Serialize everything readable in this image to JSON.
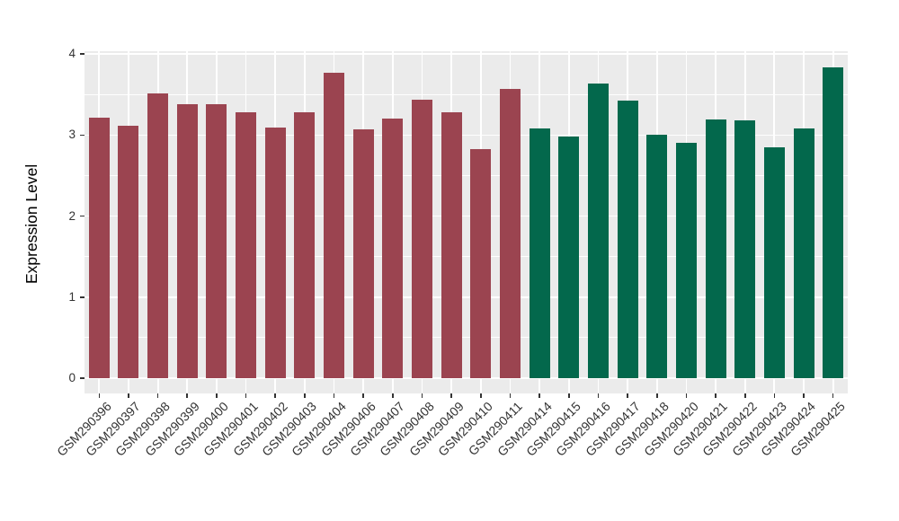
{
  "chart_data": {
    "type": "bar",
    "title": "",
    "xlabel": "",
    "ylabel": "Expression Level",
    "ylim": [
      0,
      4
    ],
    "yticks": [
      0,
      1,
      2,
      3,
      4
    ],
    "grid": "on",
    "legend_position": "none",
    "panel_background": "#EBEBEB",
    "gridline_color": "#FFFFFF",
    "tick_color": "#333333",
    "categories": [
      "GSM290396",
      "GSM290397",
      "GSM290398",
      "GSM290399",
      "GSM290400",
      "GSM290401",
      "GSM290402",
      "GSM290403",
      "GSM290404",
      "GSM290406",
      "GSM290407",
      "GSM290408",
      "GSM290409",
      "GSM290410",
      "GSM290411",
      "GSM290414",
      "GSM290415",
      "GSM290416",
      "GSM290417",
      "GSM290418",
      "GSM290420",
      "GSM290421",
      "GSM290422",
      "GSM290423",
      "GSM290424",
      "GSM290425"
    ],
    "values": [
      3.21,
      3.12,
      3.51,
      3.38,
      3.38,
      3.28,
      3.09,
      3.28,
      3.77,
      3.07,
      3.2,
      3.44,
      3.28,
      2.83,
      3.57,
      3.08,
      2.98,
      3.64,
      3.43,
      3.0,
      2.9,
      3.19,
      3.18,
      2.85,
      3.08,
      3.84
    ],
    "color_groups": [
      {
        "name": "group-1",
        "color": "#9B4450"
      },
      {
        "name": "group-2",
        "color": "#03684C"
      }
    ],
    "bar_group_index": [
      0,
      0,
      0,
      0,
      0,
      0,
      0,
      0,
      0,
      0,
      0,
      0,
      0,
      0,
      0,
      1,
      1,
      1,
      1,
      1,
      1,
      1,
      1,
      1,
      1,
      1
    ]
  }
}
